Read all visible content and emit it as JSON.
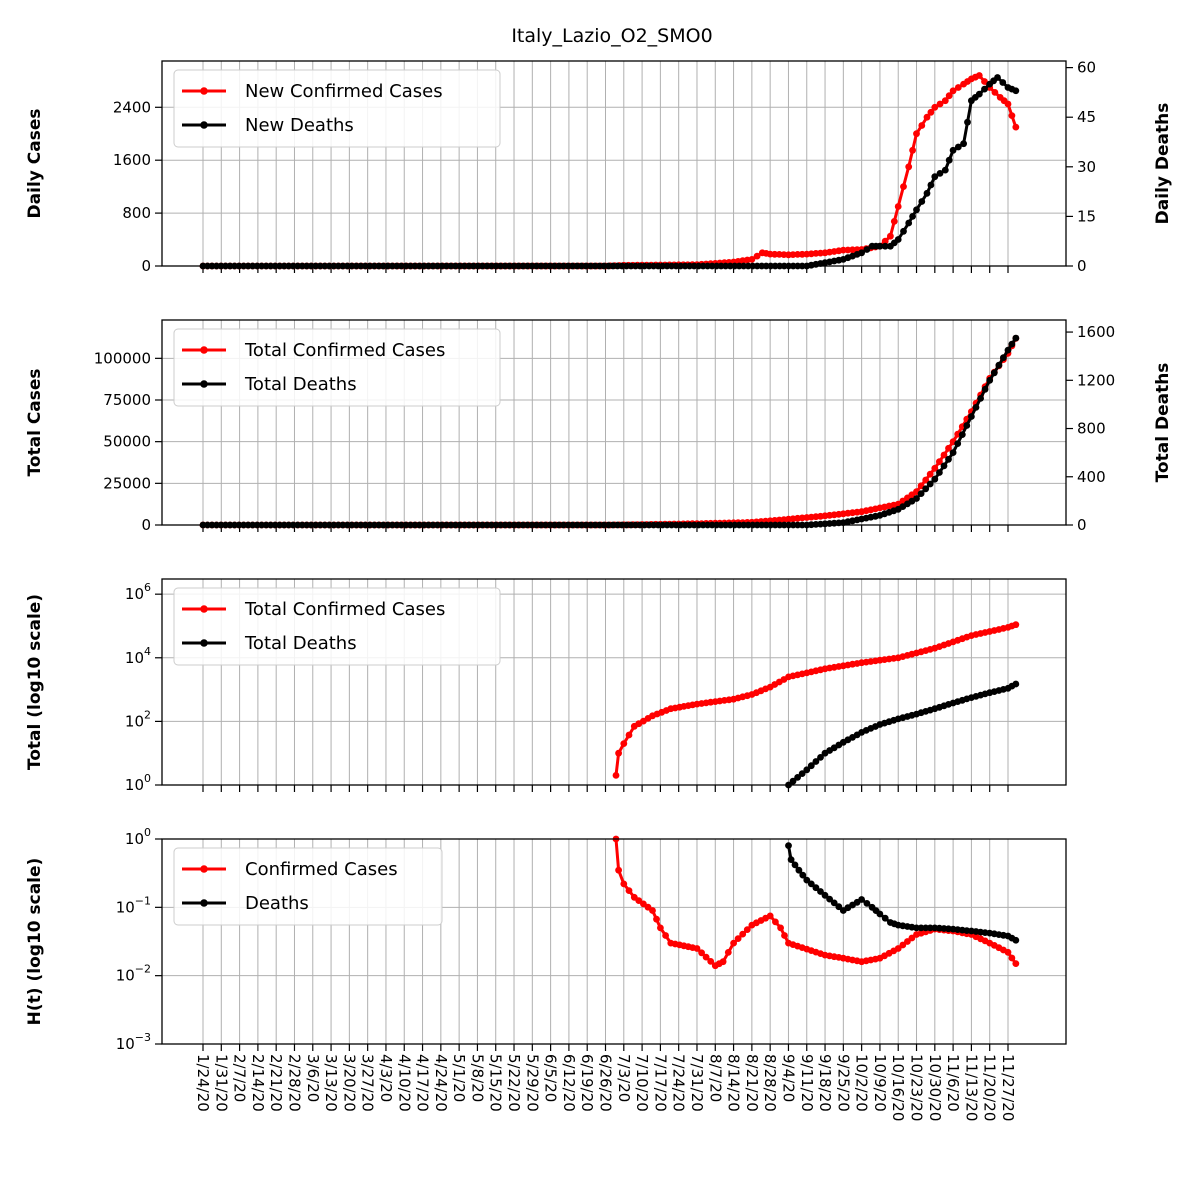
{
  "title": "Italy_Lazio_O2_SMO0",
  "x_dates": [
    "1/24/20",
    "1/31/20",
    "2/7/20",
    "2/14/20",
    "2/21/20",
    "2/28/20",
    "3/6/20",
    "3/13/20",
    "3/20/20",
    "3/27/20",
    "4/3/20",
    "4/10/20",
    "4/17/20",
    "4/24/20",
    "5/1/20",
    "5/8/20",
    "5/15/20",
    "5/22/20",
    "5/29/20",
    "6/5/20",
    "6/12/20",
    "6/19/20",
    "6/26/20",
    "7/3/20",
    "7/10/20",
    "7/17/20",
    "7/24/20",
    "7/31/20",
    "8/7/20",
    "8/14/20",
    "8/21/20",
    "8/28/20",
    "9/4/20",
    "9/11/20",
    "9/18/20",
    "9/25/20",
    "10/2/20",
    "10/9/20",
    "10/16/20",
    "10/23/20",
    "10/30/20",
    "11/6/20",
    "11/13/20",
    "11/20/20",
    "11/27/20"
  ],
  "chart_data": [
    {
      "type": "line",
      "panel": "daily",
      "ylabel": "Daily Cases",
      "y2label": "Daily Deaths",
      "ylim": [
        0,
        3100
      ],
      "yticks": [
        "0",
        "800",
        "1600",
        "2400"
      ],
      "y2lim": [
        0,
        62
      ],
      "y2ticks": [
        "0",
        "15",
        "30",
        "45",
        "60"
      ],
      "legend": "top-left",
      "grid": true,
      "series": [
        {
          "name": "New Confirmed Cases",
          "color": "#ff0000",
          "axis": "left",
          "points": [
            [
              "1/24/20",
              0
            ],
            [
              "6/26/20",
              0
            ],
            [
              "7/3/20",
              10
            ],
            [
              "7/31/20",
              20
            ],
            [
              "8/14/20",
              60
            ],
            [
              "8/21/20",
              100
            ],
            [
              "8/25/20",
              200
            ],
            [
              "8/28/20",
              180
            ],
            [
              "9/4/20",
              170
            ],
            [
              "9/11/20",
              180
            ],
            [
              "9/18/20",
              200
            ],
            [
              "9/25/20",
              240
            ],
            [
              "10/2/20",
              250
            ],
            [
              "10/9/20",
              300
            ],
            [
              "10/13/20",
              450
            ],
            [
              "10/16/20",
              900
            ],
            [
              "10/20/20",
              1500
            ],
            [
              "10/23/20",
              2000
            ],
            [
              "10/27/20",
              2250
            ],
            [
              "10/30/20",
              2400
            ],
            [
              "11/3/20",
              2500
            ],
            [
              "11/6/20",
              2650
            ],
            [
              "11/10/20",
              2750
            ],
            [
              "11/13/20",
              2830
            ],
            [
              "11/16/20",
              2880
            ],
            [
              "11/20/20",
              2700
            ],
            [
              "11/24/20",
              2550
            ],
            [
              "11/27/20",
              2450
            ],
            [
              "11/30/20",
              2100
            ]
          ]
        },
        {
          "name": "New Deaths",
          "color": "#000000",
          "axis": "right",
          "points": [
            [
              "1/24/20",
              0
            ],
            [
              "9/11/20",
              0
            ],
            [
              "9/18/20",
              1
            ],
            [
              "9/25/20",
              2
            ],
            [
              "10/2/20",
              4
            ],
            [
              "10/6/20",
              6
            ],
            [
              "10/9/20",
              6
            ],
            [
              "10/13/20",
              6
            ],
            [
              "10/16/20",
              8
            ],
            [
              "10/20/20",
              13
            ],
            [
              "10/23/20",
              17
            ],
            [
              "10/27/20",
              22
            ],
            [
              "10/30/20",
              27
            ],
            [
              "11/3/20",
              29
            ],
            [
              "11/6/20",
              35
            ],
            [
              "11/10/20",
              37
            ],
            [
              "11/13/20",
              50
            ],
            [
              "11/16/20",
              52
            ],
            [
              "11/20/20",
              55
            ],
            [
              "11/23/20",
              57
            ],
            [
              "11/27/20",
              54
            ],
            [
              "11/30/20",
              53
            ]
          ]
        }
      ]
    },
    {
      "type": "line",
      "panel": "total",
      "ylabel": "Total Cases",
      "y2label": "Total Deaths",
      "ylim": [
        0,
        123000
      ],
      "yticks": [
        "0",
        "25000",
        "50000",
        "75000",
        "100000"
      ],
      "y2lim": [
        0,
        1700
      ],
      "y2ticks": [
        "0",
        "400",
        "800",
        "1200",
        "1600"
      ],
      "legend": "top-left",
      "grid": true,
      "series": [
        {
          "name": "Total Confirmed Cases",
          "color": "#ff0000",
          "axis": "left",
          "points": [
            [
              "1/24/20",
              0
            ],
            [
              "6/26/20",
              0
            ],
            [
              "7/3/20",
              100
            ],
            [
              "7/31/20",
              800
            ],
            [
              "8/21/20",
              1600
            ],
            [
              "9/4/20",
              3500
            ],
            [
              "9/18/20",
              5500
            ],
            [
              "10/2/20",
              8000
            ],
            [
              "10/16/20",
              12500
            ],
            [
              "10/23/20",
              20000
            ],
            [
              "10/30/20",
              34000
            ],
            [
              "11/6/20",
              50000
            ],
            [
              "11/13/20",
              68000
            ],
            [
              "11/20/20",
              88000
            ],
            [
              "11/27/20",
              103000
            ],
            [
              "11/30/20",
              112000
            ]
          ]
        },
        {
          "name": "Total Deaths",
          "color": "#000000",
          "axis": "right",
          "points": [
            [
              "1/24/20",
              0
            ],
            [
              "9/11/20",
              0
            ],
            [
              "9/25/20",
              20
            ],
            [
              "10/2/20",
              50
            ],
            [
              "10/9/20",
              80
            ],
            [
              "10/16/20",
              130
            ],
            [
              "10/23/20",
              220
            ],
            [
              "10/30/20",
              380
            ],
            [
              "11/6/20",
              600
            ],
            [
              "11/13/20",
              900
            ],
            [
              "11/20/20",
              1200
            ],
            [
              "11/27/20",
              1450
            ],
            [
              "11/30/20",
              1550
            ]
          ]
        }
      ]
    },
    {
      "type": "line",
      "panel": "log",
      "ylabel": "Total (log10 scale)",
      "yscale": "log",
      "ylim": [
        1,
        3000000
      ],
      "yticks": [
        {
          "base": "10",
          "exp": "0",
          "value": 1
        },
        {
          "base": "10",
          "exp": "2",
          "value": 100
        },
        {
          "base": "10",
          "exp": "4",
          "value": 10000
        },
        {
          "base": "10",
          "exp": "6",
          "value": 1000000
        }
      ],
      "legend": "top-left",
      "grid": true,
      "series": [
        {
          "name": "Total Confirmed Cases",
          "color": "#ff0000",
          "points": [
            [
              "6/30/20",
              2
            ],
            [
              "7/1/20",
              10
            ],
            [
              "7/3/20",
              20
            ],
            [
              "7/7/20",
              70
            ],
            [
              "7/14/20",
              150
            ],
            [
              "7/21/20",
              250
            ],
            [
              "7/31/20",
              350
            ],
            [
              "8/14/20",
              500
            ],
            [
              "8/21/20",
              700
            ],
            [
              "8/28/20",
              1200
            ],
            [
              "9/4/20",
              2500
            ],
            [
              "9/18/20",
              4500
            ],
            [
              "10/2/20",
              7000
            ],
            [
              "10/16/20",
              10000
            ],
            [
              "10/30/20",
              20000
            ],
            [
              "11/13/20",
              50000
            ],
            [
              "11/27/20",
              90000
            ],
            [
              "11/30/20",
              110000
            ]
          ]
        },
        {
          "name": "Total Deaths",
          "color": "#000000",
          "points": [
            [
              "9/4/20",
              1
            ],
            [
              "9/11/20",
              3
            ],
            [
              "9/18/20",
              10
            ],
            [
              "9/25/20",
              22
            ],
            [
              "10/2/20",
              45
            ],
            [
              "10/9/20",
              80
            ],
            [
              "10/16/20",
              120
            ],
            [
              "10/23/20",
              170
            ],
            [
              "10/30/20",
              250
            ],
            [
              "11/6/20",
              380
            ],
            [
              "11/13/20",
              560
            ],
            [
              "11/20/20",
              800
            ],
            [
              "11/27/20",
              1100
            ],
            [
              "11/30/20",
              1500
            ]
          ]
        }
      ]
    },
    {
      "type": "line",
      "panel": "hazard",
      "ylabel": "H(t) (log10 scale)",
      "yscale": "log",
      "ylim": [
        0.001,
        1
      ],
      "yticks": [
        {
          "base": "10",
          "exp": "0",
          "value": 1
        },
        {
          "base": "10",
          "exp": "−1",
          "value": 0.1
        },
        {
          "base": "10",
          "exp": "−2",
          "value": 0.01
        },
        {
          "base": "10",
          "exp": "−3",
          "value": 0.001
        }
      ],
      "legend": "top-left",
      "grid": true,
      "series": [
        {
          "name": "Confirmed Cases",
          "color": "#ff0000",
          "points": [
            [
              "6/30/20",
              1.0
            ],
            [
              "7/1/20",
              0.35
            ],
            [
              "7/3/20",
              0.22
            ],
            [
              "7/7/20",
              0.14
            ],
            [
              "7/14/20",
              0.09
            ],
            [
              "7/17/20",
              0.05
            ],
            [
              "7/21/20",
              0.03
            ],
            [
              "7/31/20",
              0.025
            ],
            [
              "8/7/20",
              0.014
            ],
            [
              "8/10/20",
              0.016
            ],
            [
              "8/14/20",
              0.03
            ],
            [
              "8/21/20",
              0.055
            ],
            [
              "8/28/20",
              0.075
            ],
            [
              "9/1/20",
              0.05
            ],
            [
              "9/4/20",
              0.03
            ],
            [
              "9/18/20",
              0.02
            ],
            [
              "9/25/20",
              0.018
            ],
            [
              "10/2/20",
              0.016
            ],
            [
              "10/9/20",
              0.018
            ],
            [
              "10/16/20",
              0.025
            ],
            [
              "10/23/20",
              0.04
            ],
            [
              "10/30/20",
              0.048
            ],
            [
              "11/6/20",
              0.045
            ],
            [
              "11/13/20",
              0.04
            ],
            [
              "11/20/20",
              0.03
            ],
            [
              "11/27/20",
              0.022
            ],
            [
              "11/30/20",
              0.015
            ]
          ]
        },
        {
          "name": "Deaths",
          "color": "#000000",
          "points": [
            [
              "9/4/20",
              0.8
            ],
            [
              "9/5/20",
              0.5
            ],
            [
              "9/8/20",
              0.35
            ],
            [
              "9/11/20",
              0.25
            ],
            [
              "9/18/20",
              0.15
            ],
            [
              "9/25/20",
              0.09
            ],
            [
              "10/2/20",
              0.13
            ],
            [
              "10/6/20",
              0.1
            ],
            [
              "10/9/20",
              0.08
            ],
            [
              "10/13/20",
              0.06
            ],
            [
              "10/16/20",
              0.055
            ],
            [
              "10/23/20",
              0.05
            ],
            [
              "10/30/20",
              0.05
            ],
            [
              "11/6/20",
              0.048
            ],
            [
              "11/13/20",
              0.045
            ],
            [
              "11/20/20",
              0.042
            ],
            [
              "11/27/20",
              0.038
            ],
            [
              "11/30/20",
              0.033
            ]
          ]
        }
      ]
    }
  ]
}
